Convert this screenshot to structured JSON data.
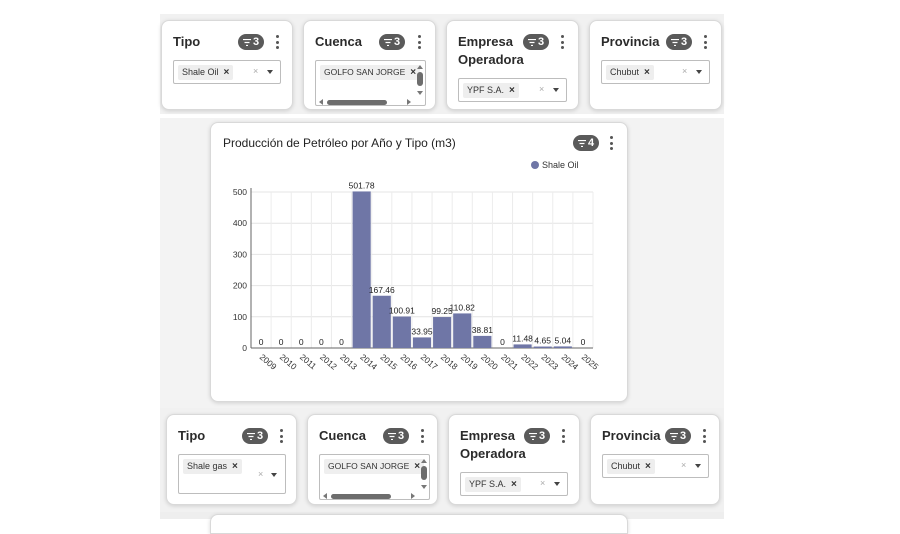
{
  "colors": {
    "series": "#6f76a6",
    "badge": "#5a5a5a"
  },
  "top_filters": {
    "tipo": {
      "title": "Tipo",
      "badge": "3",
      "chip": "Shale Oil"
    },
    "cuenca": {
      "title": "Cuenca",
      "badge": "3",
      "chip": "GOLFO SAN JORGE"
    },
    "empresa": {
      "title": "Empresa Operadora",
      "badge": "3",
      "chip": "YPF S.A."
    },
    "provincia": {
      "title": "Provincia",
      "badge": "3",
      "chip": "Chubut"
    }
  },
  "chart_panel": {
    "badge": "4",
    "legend_label": "Shale Oil"
  },
  "chart_data": {
    "type": "bar",
    "title": "Producción de Petróleo por Año y Tipo (m3)",
    "xlabel": "",
    "ylabel": "",
    "ylim": [
      0,
      500
    ],
    "yticks": [
      "0",
      "100",
      "200",
      "300",
      "400",
      "500"
    ],
    "categories": [
      "2009",
      "2010",
      "2011",
      "2012",
      "2013",
      "2014",
      "2015",
      "2016",
      "2017",
      "2018",
      "2019",
      "2020",
      "2021",
      "2022",
      "2023",
      "2024",
      "2025"
    ],
    "series": [
      {
        "name": "Shale Oil",
        "values": [
          0,
          0,
          0,
          0,
          0,
          501.78,
          167.46,
          100.91,
          33.95,
          99.25,
          110.82,
          38.81,
          0,
          11.48,
          4.65,
          5.04,
          0
        ],
        "labels": [
          "0",
          "0",
          "0",
          "0",
          "0",
          "501.78",
          "167.46",
          "100.91",
          "33.95",
          "99.25",
          "110.82",
          "38.81",
          "0",
          "11.48",
          "4.65",
          "5.04",
          "0"
        ]
      }
    ],
    "legend": "top-right",
    "grid": true
  },
  "bottom_filters": {
    "tipo": {
      "title": "Tipo",
      "badge": "3",
      "chip": "Shale gas"
    },
    "cuenca": {
      "title": "Cuenca",
      "badge": "3",
      "chip": "GOLFO SAN JORGE"
    },
    "empresa": {
      "title": "Empresa Operadora",
      "badge": "3",
      "chip": "YPF S.A."
    },
    "provincia": {
      "title": "Provincia",
      "badge": "3",
      "chip": "Chubut"
    }
  },
  "icons": {
    "filter": "filter-icon",
    "menu": "kebab-menu-icon",
    "remove": "close-icon",
    "dropdown": "chevron-down-icon"
  },
  "glyphs": {
    "remove": "×",
    "clear": "×"
  }
}
